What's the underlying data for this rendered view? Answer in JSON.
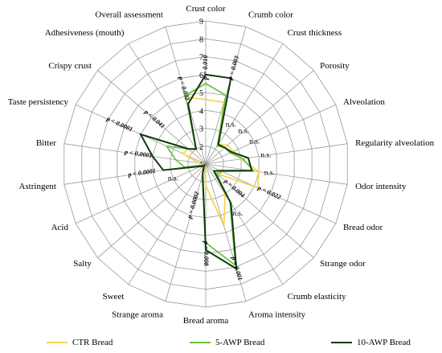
{
  "chart_data": {
    "type": "radar",
    "title": "",
    "axes": [
      "Crust color",
      "Crumb color",
      "Crust thickness",
      "Porosity",
      "Alveolation",
      "Regularity alveolation",
      "Odor intensity",
      "Bread odor",
      "Strange odor",
      "Crumb elasticity",
      "Aroma intensity",
      "Bread aroma",
      "Strange aroma",
      "Sweet",
      "Salty",
      "Acid",
      "Astringent",
      "Bitter",
      "Taste persistency",
      "Crispy crust",
      "Adhesiveness (mouth)",
      "Overall assessment"
    ],
    "rlim": [
      1,
      9
    ],
    "ticks": [
      1,
      2,
      3,
      4,
      5,
      6,
      7,
      8,
      9
    ],
    "grid": true,
    "legend_position": "bottom",
    "series": [
      {
        "name": "CTR Bread",
        "color": "#f5d547",
        "values": [
          4.6,
          4.6,
          2.3,
          2.6,
          2.7,
          3.0,
          4.0,
          4.2,
          1.8,
          3.0,
          4.6,
          2.2,
          1.2,
          1.2,
          1.1,
          1.1,
          1.2,
          1.4,
          2.4,
          2.3,
          2.0,
          4.9
        ]
      },
      {
        "name": "5-AWP Bread",
        "color": "#6abf40",
        "values": [
          5.5,
          5.0,
          2.2,
          2.4,
          2.5,
          3.1,
          3.7,
          2.0,
          1.8,
          3.5,
          6.9,
          5.4,
          1.7,
          1.2,
          1.1,
          1.2,
          2.2,
          2.7,
          3.4,
          2.3,
          2.0,
          5.0
        ]
      },
      {
        "name": "10-AWP Bread",
        "color": "#0d3b0d",
        "values": [
          6.0,
          6.0,
          2.3,
          2.4,
          2.6,
          3.4,
          3.6,
          1.9,
          1.6,
          3.6,
          7.1,
          5.8,
          1.6,
          1.2,
          1.1,
          1.3,
          3.4,
          4.0,
          5.0,
          2.3,
          2.0,
          4.5
        ]
      }
    ],
    "annotations": [
      {
        "axis": "Crust color",
        "text": "p = 0.010",
        "r": 6.4
      },
      {
        "axis": "Crumb color",
        "text": "p = 0.003",
        "r": 6.6
      },
      {
        "axis": "Crust thickness",
        "text": "n.s.",
        "r": 3.6
      },
      {
        "axis": "Porosity",
        "text": "n.s.",
        "r": 3.8
      },
      {
        "axis": "Alveolation",
        "text": "n.s.",
        "r": 4.0
      },
      {
        "axis": "Regularity alveolation",
        "text": "n.s.",
        "r": 4.4
      },
      {
        "axis": "Odor intensity",
        "text": "n.s.",
        "r": 4.6
      },
      {
        "axis": "Bread odor",
        "text": "p = 0.022",
        "r": 4.9
      },
      {
        "axis": "Strange odor",
        "text": "p = 0.004",
        "r": 3.1
      },
      {
        "axis": "Crumb elasticity",
        "text": "n.s.",
        "r": 4.3
      },
      {
        "axis": "Aroma intensity",
        "text": "p = 0.001",
        "r": 7.1
      },
      {
        "axis": "Bread aroma",
        "text": "p = 0.008",
        "r": 6.0
      },
      {
        "axis": "Strange aroma",
        "text": "p = 0.0002",
        "r": 3.4
      },
      {
        "axis": "Acid",
        "text": "n.s.",
        "r": 3.0
      },
      {
        "axis": "Astringent",
        "text": "p < 0.0001",
        "r": 4.6
      },
      {
        "axis": "Bitter",
        "text": "p < 0.0001",
        "r": 4.8
      },
      {
        "axis": "Taste persistency",
        "text": "p < 0.0001",
        "r": 6.3
      },
      {
        "axis": "Crispy crust",
        "text": "p < 0.041",
        "r": 4.8
      },
      {
        "axis": "Overall assessment",
        "text": "p < 0.032",
        "r": 5.4
      }
    ]
  }
}
